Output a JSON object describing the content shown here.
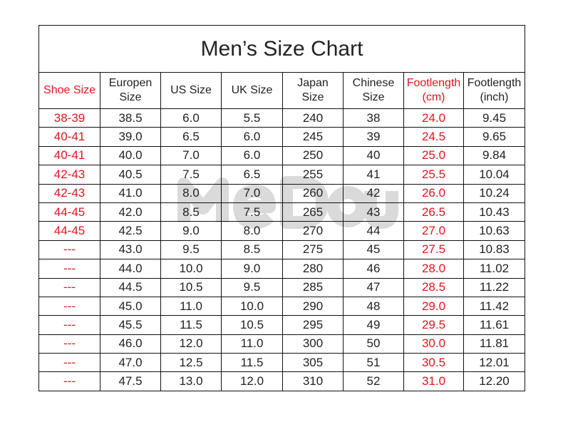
{
  "watermark": "MeDou",
  "title": "Men’s Size Chart",
  "colors": {
    "red": "#e8141c",
    "text": "#222222",
    "border": "#111111"
  },
  "headers": [
    "Shoe Size",
    "Europen\nSize",
    "US Size",
    "UK Size",
    "Japan\nSize",
    "Chinese\nSize",
    "Footlength\n(cm)",
    "Footlength\n(inch)"
  ],
  "red_columns": [
    0,
    6
  ],
  "rows": [
    [
      "38-39",
      "38.5",
      "6.0",
      "5.5",
      "240",
      "38",
      "24.0",
      "9.45"
    ],
    [
      "40-41",
      "39.0",
      "6.5",
      "6.0",
      "245",
      "39",
      "24.5",
      "9.65"
    ],
    [
      "40-41",
      "40.0",
      "7.0",
      "6.0",
      "250",
      "40",
      "25.0",
      "9.84"
    ],
    [
      "42-43",
      "40.5",
      "7.5",
      "6.5",
      "255",
      "41",
      "25.5",
      "10.04"
    ],
    [
      "42-43",
      "41.0",
      "8.0",
      "7.0",
      "260",
      "42",
      "26.0",
      "10.24"
    ],
    [
      "44-45",
      "42.0",
      "8.5",
      "7.5",
      "265",
      "43",
      "26.5",
      "10.43"
    ],
    [
      "44-45",
      "42.5",
      "9.0",
      "8.0",
      "270",
      "44",
      "27.0",
      "10.63"
    ],
    [
      "---",
      "43.0",
      "9.5",
      "8.5",
      "275",
      "45",
      "27.5",
      "10.83"
    ],
    [
      "---",
      "44.0",
      "10.0",
      "9.0",
      "280",
      "46",
      "28.0",
      "11.02"
    ],
    [
      "---",
      "44.5",
      "10.5",
      "9.5",
      "285",
      "47",
      "28.5",
      "11.22"
    ],
    [
      "---",
      "45.0",
      "11.0",
      "10.0",
      "290",
      "48",
      "29.0",
      "11.42"
    ],
    [
      "---",
      "45.5",
      "11.5",
      "10.5",
      "295",
      "49",
      "29.5",
      "11.61"
    ],
    [
      "---",
      "46.0",
      "12.0",
      "11.0",
      "300",
      "50",
      "30.0",
      "11.81"
    ],
    [
      "---",
      "47.0",
      "12.5",
      "11.5",
      "305",
      "51",
      "30.5",
      "12.01"
    ],
    [
      "---",
      "47.5",
      "13.0",
      "12.0",
      "310",
      "52",
      "31.0",
      "12.20"
    ]
  ]
}
